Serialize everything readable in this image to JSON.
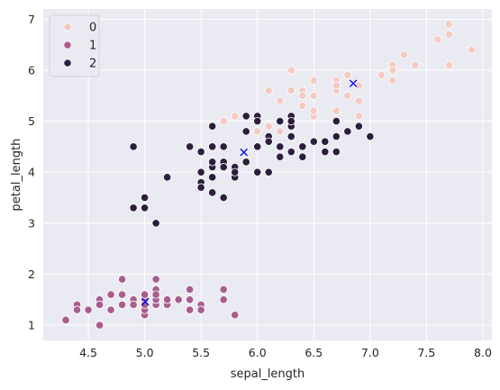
{
  "chart_data": {
    "type": "scatter",
    "xlabel": "sepal_length",
    "ylabel": "petal_length",
    "xlim": [
      4.1,
      8.08
    ],
    "ylim": [
      0.7,
      7.2
    ],
    "xticks": [
      4.5,
      5.0,
      5.5,
      6.0,
      6.5,
      7.0,
      7.5,
      8.0
    ],
    "xtick_labels": [
      "4.5",
      "5.0",
      "5.5",
      "6.0",
      "6.5",
      "7.0",
      "7.5",
      "8.0"
    ],
    "yticks": [
      1,
      2,
      3,
      4,
      5,
      6,
      7
    ],
    "ytick_labels": [
      "1",
      "2",
      "3",
      "4",
      "5",
      "6",
      "7"
    ],
    "grid": true,
    "legend_position": "top-left",
    "series": [
      {
        "name": "0",
        "color": "#f3cbc3",
        "points": [
          [
            6.3,
            6.0
          ],
          [
            5.8,
            5.1
          ],
          [
            7.1,
            5.9
          ],
          [
            6.3,
            5.6
          ],
          [
            6.5,
            5.8
          ],
          [
            7.6,
            6.6
          ],
          [
            7.3,
            6.3
          ],
          [
            6.7,
            5.8
          ],
          [
            7.2,
            6.1
          ],
          [
            6.5,
            5.1
          ],
          [
            6.4,
            5.3
          ],
          [
            6.8,
            5.5
          ],
          [
            5.7,
            5.0
          ],
          [
            5.8,
            5.1
          ],
          [
            6.4,
            5.3
          ],
          [
            6.5,
            5.5
          ],
          [
            7.7,
            6.7
          ],
          [
            7.7,
            6.9
          ],
          [
            6.0,
            5.0
          ],
          [
            6.9,
            5.7
          ],
          [
            5.6,
            4.9
          ],
          [
            7.7,
            6.7
          ],
          [
            6.3,
            4.9
          ],
          [
            6.7,
            5.7
          ],
          [
            7.2,
            6.0
          ],
          [
            6.2,
            4.8
          ],
          [
            6.1,
            4.9
          ],
          [
            6.4,
            5.6
          ],
          [
            7.2,
            5.8
          ],
          [
            7.4,
            6.1
          ],
          [
            7.9,
            6.4
          ],
          [
            6.4,
            5.6
          ],
          [
            6.3,
            5.1
          ],
          [
            6.1,
            5.6
          ],
          [
            7.7,
            6.1
          ],
          [
            6.3,
            5.6
          ],
          [
            6.4,
            5.5
          ],
          [
            6.0,
            4.8
          ],
          [
            6.9,
            5.4
          ],
          [
            6.7,
            5.6
          ],
          [
            6.9,
            5.1
          ],
          [
            6.8,
            5.9
          ],
          [
            6.7,
            5.7
          ],
          [
            6.7,
            5.2
          ],
          [
            6.3,
            5.0
          ],
          [
            6.5,
            5.2
          ],
          [
            6.2,
            5.4
          ],
          [
            5.9,
            5.1
          ],
          [
            6.9,
            4.9
          ],
          [
            7.0,
            4.7
          ],
          [
            6.7,
            5.0
          ],
          [
            6.5,
            5.5
          ],
          [
            6.8,
            5.9
          ]
        ]
      },
      {
        "name": "1",
        "color": "#a85d8d",
        "points": [
          [
            5.1,
            1.4
          ],
          [
            4.9,
            1.4
          ],
          [
            4.7,
            1.3
          ],
          [
            4.6,
            1.5
          ],
          [
            5.0,
            1.4
          ],
          [
            5.4,
            1.7
          ],
          [
            4.6,
            1.4
          ],
          [
            5.0,
            1.5
          ],
          [
            4.4,
            1.4
          ],
          [
            4.9,
            1.5
          ],
          [
            5.4,
            1.5
          ],
          [
            4.8,
            1.6
          ],
          [
            4.8,
            1.4
          ],
          [
            4.3,
            1.1
          ],
          [
            5.8,
            1.2
          ],
          [
            5.7,
            1.5
          ],
          [
            5.4,
            1.3
          ],
          [
            5.1,
            1.4
          ],
          [
            5.7,
            1.7
          ],
          [
            5.1,
            1.5
          ],
          [
            5.4,
            1.7
          ],
          [
            5.1,
            1.5
          ],
          [
            4.6,
            1.0
          ],
          [
            5.1,
            1.7
          ],
          [
            4.8,
            1.9
          ],
          [
            5.0,
            1.6
          ],
          [
            5.0,
            1.6
          ],
          [
            5.2,
            1.5
          ],
          [
            5.2,
            1.4
          ],
          [
            4.7,
            1.6
          ],
          [
            4.8,
            1.6
          ],
          [
            5.4,
            1.5
          ],
          [
            5.2,
            1.5
          ],
          [
            5.5,
            1.4
          ],
          [
            4.9,
            1.5
          ],
          [
            5.0,
            1.2
          ],
          [
            5.5,
            1.3
          ],
          [
            4.9,
            1.4
          ],
          [
            4.4,
            1.3
          ],
          [
            5.1,
            1.5
          ],
          [
            5.0,
            1.3
          ],
          [
            4.5,
            1.3
          ],
          [
            4.4,
            1.3
          ],
          [
            5.0,
            1.6
          ],
          [
            5.1,
            1.9
          ],
          [
            4.8,
            1.4
          ],
          [
            5.1,
            1.6
          ],
          [
            4.6,
            1.4
          ],
          [
            5.3,
            1.5
          ],
          [
            5.0,
            1.4
          ]
        ]
      },
      {
        "name": "2",
        "color": "#2d1e3e",
        "points": [
          [
            7.0,
            4.7
          ],
          [
            6.4,
            4.5
          ],
          [
            6.9,
            4.9
          ],
          [
            5.5,
            4.0
          ],
          [
            6.5,
            4.6
          ],
          [
            5.7,
            4.5
          ],
          [
            6.3,
            4.7
          ],
          [
            4.9,
            3.3
          ],
          [
            6.6,
            4.6
          ],
          [
            5.2,
            3.9
          ],
          [
            5.0,
            3.5
          ],
          [
            5.9,
            4.2
          ],
          [
            6.0,
            4.0
          ],
          [
            6.1,
            4.7
          ],
          [
            5.6,
            3.6
          ],
          [
            6.7,
            4.4
          ],
          [
            5.6,
            4.5
          ],
          [
            5.8,
            4.1
          ],
          [
            6.2,
            4.5
          ],
          [
            5.6,
            3.9
          ],
          [
            5.9,
            4.8
          ],
          [
            6.1,
            4.0
          ],
          [
            6.3,
            4.9
          ],
          [
            6.1,
            4.7
          ],
          [
            6.4,
            4.3
          ],
          [
            6.6,
            4.4
          ],
          [
            6.8,
            4.8
          ],
          [
            6.7,
            5.0
          ],
          [
            6.0,
            4.5
          ],
          [
            5.7,
            3.5
          ],
          [
            5.5,
            3.8
          ],
          [
            5.5,
            3.7
          ],
          [
            5.8,
            3.9
          ],
          [
            6.0,
            5.1
          ],
          [
            5.4,
            4.5
          ],
          [
            6.0,
            4.5
          ],
          [
            6.7,
            4.7
          ],
          [
            6.3,
            4.4
          ],
          [
            5.6,
            4.1
          ],
          [
            5.5,
            4.0
          ],
          [
            5.5,
            4.4
          ],
          [
            6.1,
            4.6
          ],
          [
            5.8,
            4.0
          ],
          [
            5.0,
            3.3
          ],
          [
            5.6,
            4.2
          ],
          [
            5.7,
            4.2
          ],
          [
            5.7,
            4.2
          ],
          [
            6.2,
            4.3
          ],
          [
            5.1,
            3.0
          ],
          [
            5.7,
            4.1
          ],
          [
            4.9,
            4.5
          ],
          [
            5.6,
            4.9
          ],
          [
            6.3,
            5.1
          ],
          [
            6.0,
            5.0
          ],
          [
            5.9,
            5.1
          ],
          [
            6.2,
            5.0
          ],
          [
            6.3,
            5.0
          ],
          [
            5.0,
            3.5
          ],
          [
            5.6,
            4.5
          ]
        ]
      }
    ],
    "centroids": {
      "color": "#0000ff",
      "marker": "x",
      "points": [
        [
          6.85,
          5.74
        ],
        [
          5.006,
          1.46
        ],
        [
          5.88,
          4.39
        ]
      ]
    }
  }
}
